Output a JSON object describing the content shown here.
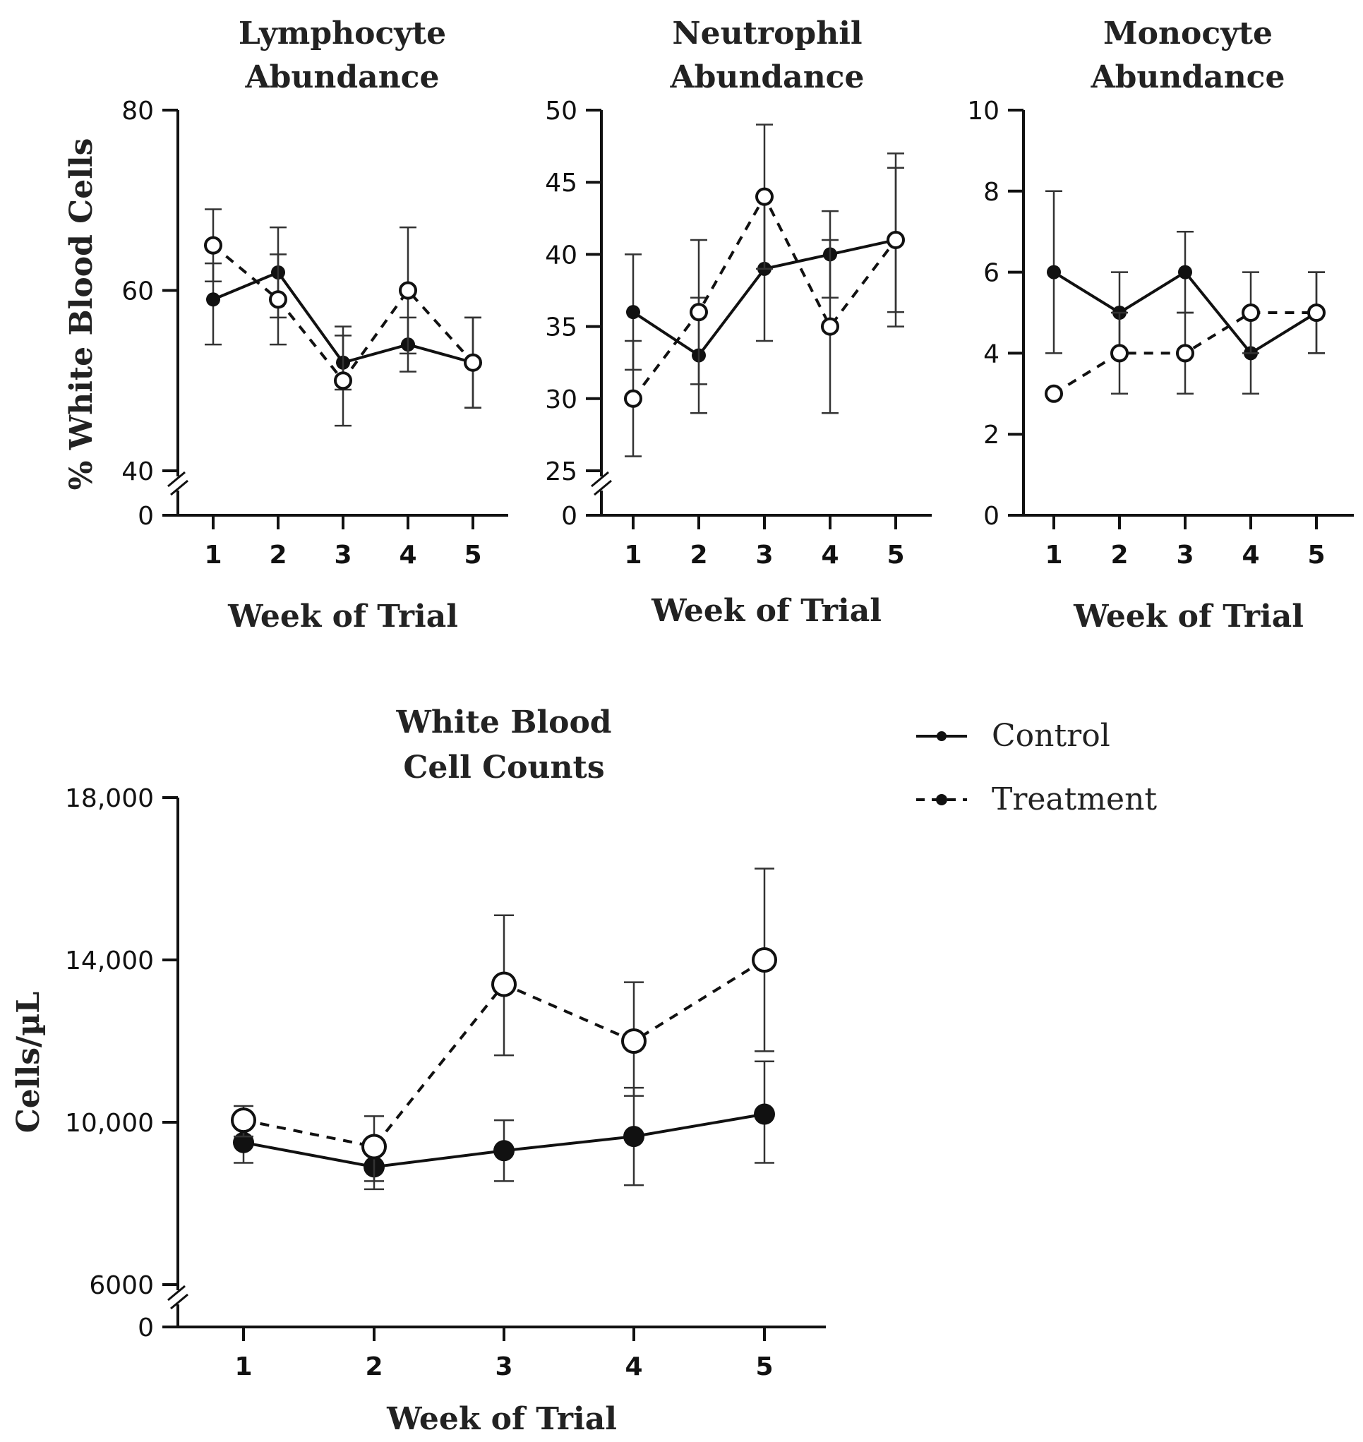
{
  "chart_data": [
    {
      "id": "lymphocyte",
      "type": "line",
      "title": [
        "Lymphocyte",
        "Abundance"
      ],
      "xlabel": "Week of Trial",
      "ylabel": "% White Blood Cells",
      "x": [
        1,
        2,
        3,
        4,
        5
      ],
      "xticks": [
        "1",
        "2",
        "3",
        "4",
        "5"
      ],
      "axis_break": true,
      "ylim": [
        40,
        80
      ],
      "yticks": [
        {
          "value": 40,
          "label": "40"
        },
        {
          "value": 60,
          "label": "60"
        },
        {
          "value": 80,
          "label": "80"
        }
      ],
      "break_label": "0",
      "series": [
        {
          "name": "Control",
          "style": "solid",
          "values": [
            59,
            62,
            52,
            54,
            52
          ],
          "err_low": [
            54,
            57,
            49,
            51,
            47
          ],
          "err_high": [
            63,
            64,
            55,
            57,
            57
          ]
        },
        {
          "name": "Treatment",
          "style": "dashed",
          "values": [
            65,
            59,
            50,
            60,
            52
          ],
          "err_low": [
            61,
            54,
            45,
            53,
            47
          ],
          "err_high": [
            69,
            67,
            56,
            67,
            57
          ]
        }
      ]
    },
    {
      "id": "neutrophil",
      "type": "line",
      "title": [
        "Neutrophil",
        "Abundance"
      ],
      "xlabel": "Week of Trial",
      "ylabel": "",
      "x": [
        1,
        2,
        3,
        4,
        5
      ],
      "xticks": [
        "1",
        "2",
        "3",
        "4",
        "5"
      ],
      "axis_break": true,
      "ylim": [
        25,
        50
      ],
      "yticks": [
        {
          "value": 25,
          "label": "25"
        },
        {
          "value": 30,
          "label": "30"
        },
        {
          "value": 35,
          "label": "35"
        },
        {
          "value": 40,
          "label": "40"
        },
        {
          "value": 45,
          "label": "45"
        },
        {
          "value": 50,
          "label": "50"
        }
      ],
      "break_label": "0",
      "series": [
        {
          "name": "Control",
          "style": "solid",
          "values": [
            36,
            33,
            39,
            40,
            41
          ],
          "err_low": [
            32,
            29,
            34,
            37,
            36
          ],
          "err_high": [
            40,
            37,
            44,
            43,
            46
          ]
        },
        {
          "name": "Treatment",
          "style": "dashed",
          "values": [
            30,
            36,
            44,
            35,
            41
          ],
          "err_low": [
            26,
            31,
            39,
            29,
            35
          ],
          "err_high": [
            34,
            41,
            49,
            41,
            47
          ]
        }
      ]
    },
    {
      "id": "monocyte",
      "type": "line",
      "title": [
        "Monocyte",
        "Abundance"
      ],
      "xlabel": "Week of Trial",
      "ylabel": "",
      "x": [
        1,
        2,
        3,
        4,
        5
      ],
      "xticks": [
        "1",
        "2",
        "3",
        "4",
        "5"
      ],
      "axis_break": false,
      "ylim": [
        0,
        10
      ],
      "yticks": [
        {
          "value": 0,
          "label": "0"
        },
        {
          "value": 2,
          "label": "2"
        },
        {
          "value": 4,
          "label": "4"
        },
        {
          "value": 6,
          "label": "6"
        },
        {
          "value": 8,
          "label": "8"
        },
        {
          "value": 10,
          "label": "10"
        }
      ],
      "series": [
        {
          "name": "Control",
          "style": "solid",
          "values": [
            6,
            5,
            6,
            4,
            5
          ],
          "err_low": [
            4,
            4,
            5,
            3,
            4
          ],
          "err_high": [
            8,
            6,
            7,
            5,
            6
          ]
        },
        {
          "name": "Treatment",
          "style": "dashed",
          "values": [
            3,
            4,
            4,
            5,
            5
          ],
          "err_low": [
            3,
            3,
            3,
            4,
            4
          ],
          "err_high": [
            3,
            5,
            5,
            6,
            6
          ]
        }
      ]
    },
    {
      "id": "wbc",
      "type": "line",
      "title": [
        "White Blood",
        "Cell Counts"
      ],
      "xlabel": "Week of Trial",
      "ylabel": "Cells/µL",
      "x": [
        1,
        2,
        3,
        4,
        5
      ],
      "xticks": [
        "1",
        "2",
        "3",
        "4",
        "5"
      ],
      "axis_break": true,
      "ylim": [
        6000,
        18000
      ],
      "yticks": [
        {
          "value": 6000,
          "label": "6000"
        },
        {
          "value": 10000,
          "label": "10,000"
        },
        {
          "value": 14000,
          "label": "14,000"
        },
        {
          "value": 18000,
          "label": "18,000"
        }
      ],
      "break_label": "0",
      "series": [
        {
          "name": "Control",
          "style": "solid",
          "values": [
            9500,
            8900,
            9300,
            9650,
            10200
          ],
          "err_low": [
            9000,
            8350,
            8550,
            8450,
            9000
          ],
          "err_high": [
            9950,
            9350,
            10050,
            10850,
            11500
          ]
        },
        {
          "name": "Treatment",
          "style": "dashed",
          "values": [
            10050,
            9400,
            13400,
            12000,
            14000
          ],
          "err_low": [
            9650,
            8550,
            11650,
            10650,
            11750
          ],
          "err_high": [
            10400,
            10150,
            15100,
            13450,
            16250
          ]
        }
      ]
    }
  ],
  "legend": {
    "position": "right of bottom chart",
    "items": [
      {
        "label": "Control",
        "style": "solid"
      },
      {
        "label": "Treatment",
        "style": "dashed"
      }
    ]
  },
  "colors": {
    "ink": "#111111",
    "text": "#222222",
    "background": "#ffffff"
  }
}
